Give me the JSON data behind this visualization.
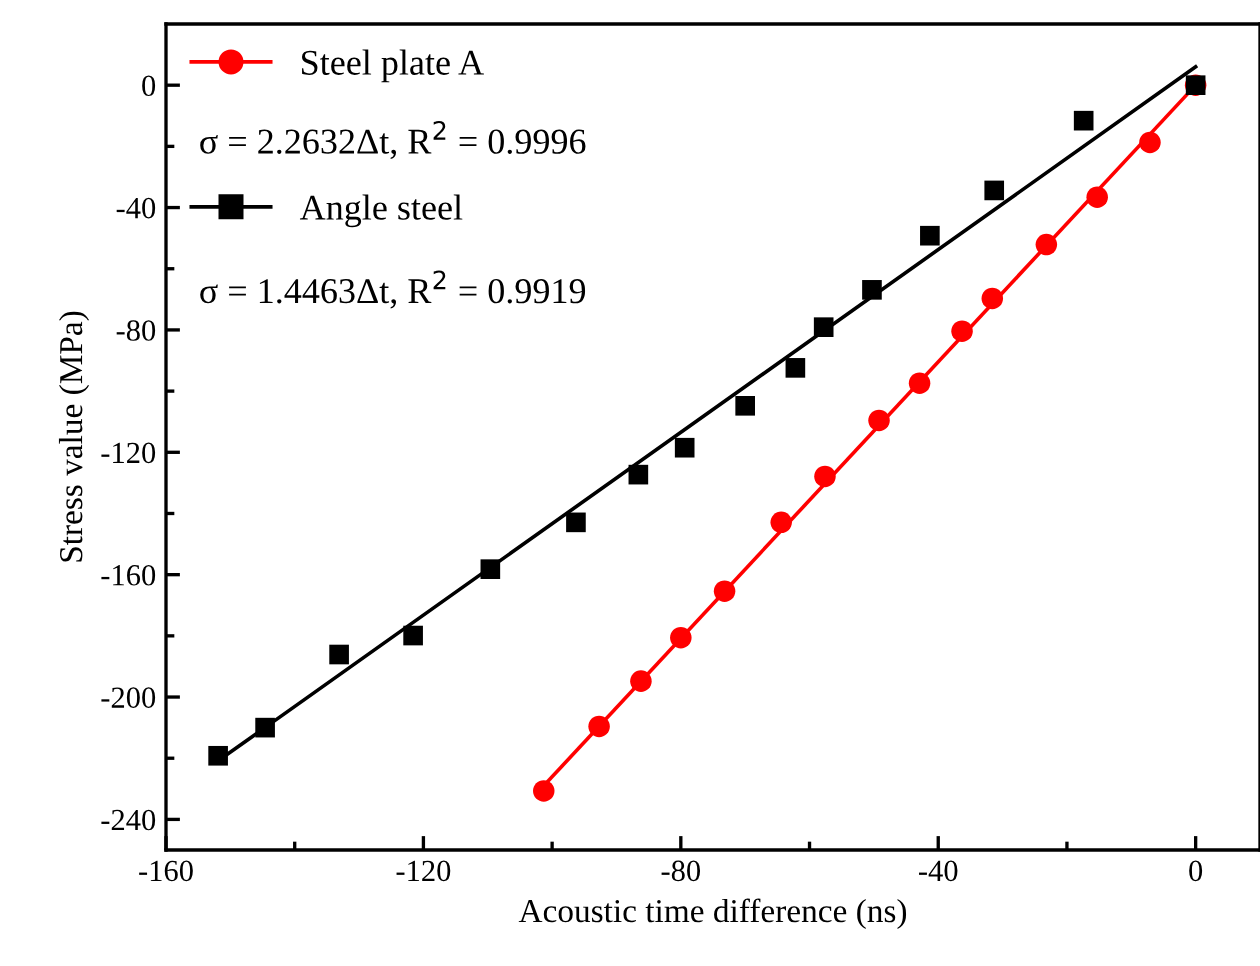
{
  "chart_data": {
    "type": "scatter",
    "xlabel": "Acoustic time difference (ns)",
    "ylabel": "Stress value (MPa)",
    "xlim": [
      -160,
      10
    ],
    "ylim": [
      -250,
      20
    ],
    "xticks": [
      -160,
      -120,
      -80,
      -40,
      0
    ],
    "yticks": [
      -240,
      -200,
      -160,
      -120,
      -80,
      -40,
      0
    ],
    "grid": false,
    "legend": "top left",
    "annotations": [
      "σ = 2.2632Δt, R$^{2}$ = 0.9996",
      "σ = 1.4463Δt, R$^{2}$ = 0.9919"
    ],
    "series": [
      {
        "name": "Steel plate A",
        "color": "#ff0000",
        "marker": "circle",
        "x": [
          0,
          -7.1,
          -15.3,
          -23.2,
          -31.6,
          -36.3,
          -42.9,
          -49.2,
          -57.6,
          -64.4,
          -73.2,
          -80,
          -86.2,
          -92.7,
          -101.3
        ],
        "values": [
          0,
          -18.7,
          -36.6,
          -52.1,
          -69.7,
          -80.4,
          -97.4,
          -109.6,
          -127.9,
          -142.9,
          -165.4,
          -180.6,
          -194.8,
          -209.6,
          -230.7
        ]
      },
      {
        "type": "line",
        "color": "#ff0000",
        "marker": "none",
        "x": [
          -101.3,
          0
        ],
        "values": [
          -229,
          0
        ]
      },
      {
        "name": "Angle steel",
        "color": "#000000",
        "marker": "square",
        "x": [
          0,
          -17.4,
          -31.3,
          -41.3,
          -50.3,
          -57.8,
          -62.2,
          -70,
          -79.4,
          -86.6,
          -96.3,
          -109.6,
          -121.6,
          -133.1,
          -144.6,
          -151.9
        ],
        "values": [
          0,
          -11.6,
          -34.4,
          -49.2,
          -66.9,
          -79.1,
          -92.4,
          -104.8,
          -118.5,
          -127.3,
          -142.9,
          -158.2,
          -179.9,
          -186.1,
          -210,
          -219.2
        ]
      },
      {
        "type": "line",
        "color": "#000000",
        "marker": "none",
        "x": [
          -152,
          0
        ],
        "values": [
          -221,
          6
        ]
      }
    ]
  }
}
